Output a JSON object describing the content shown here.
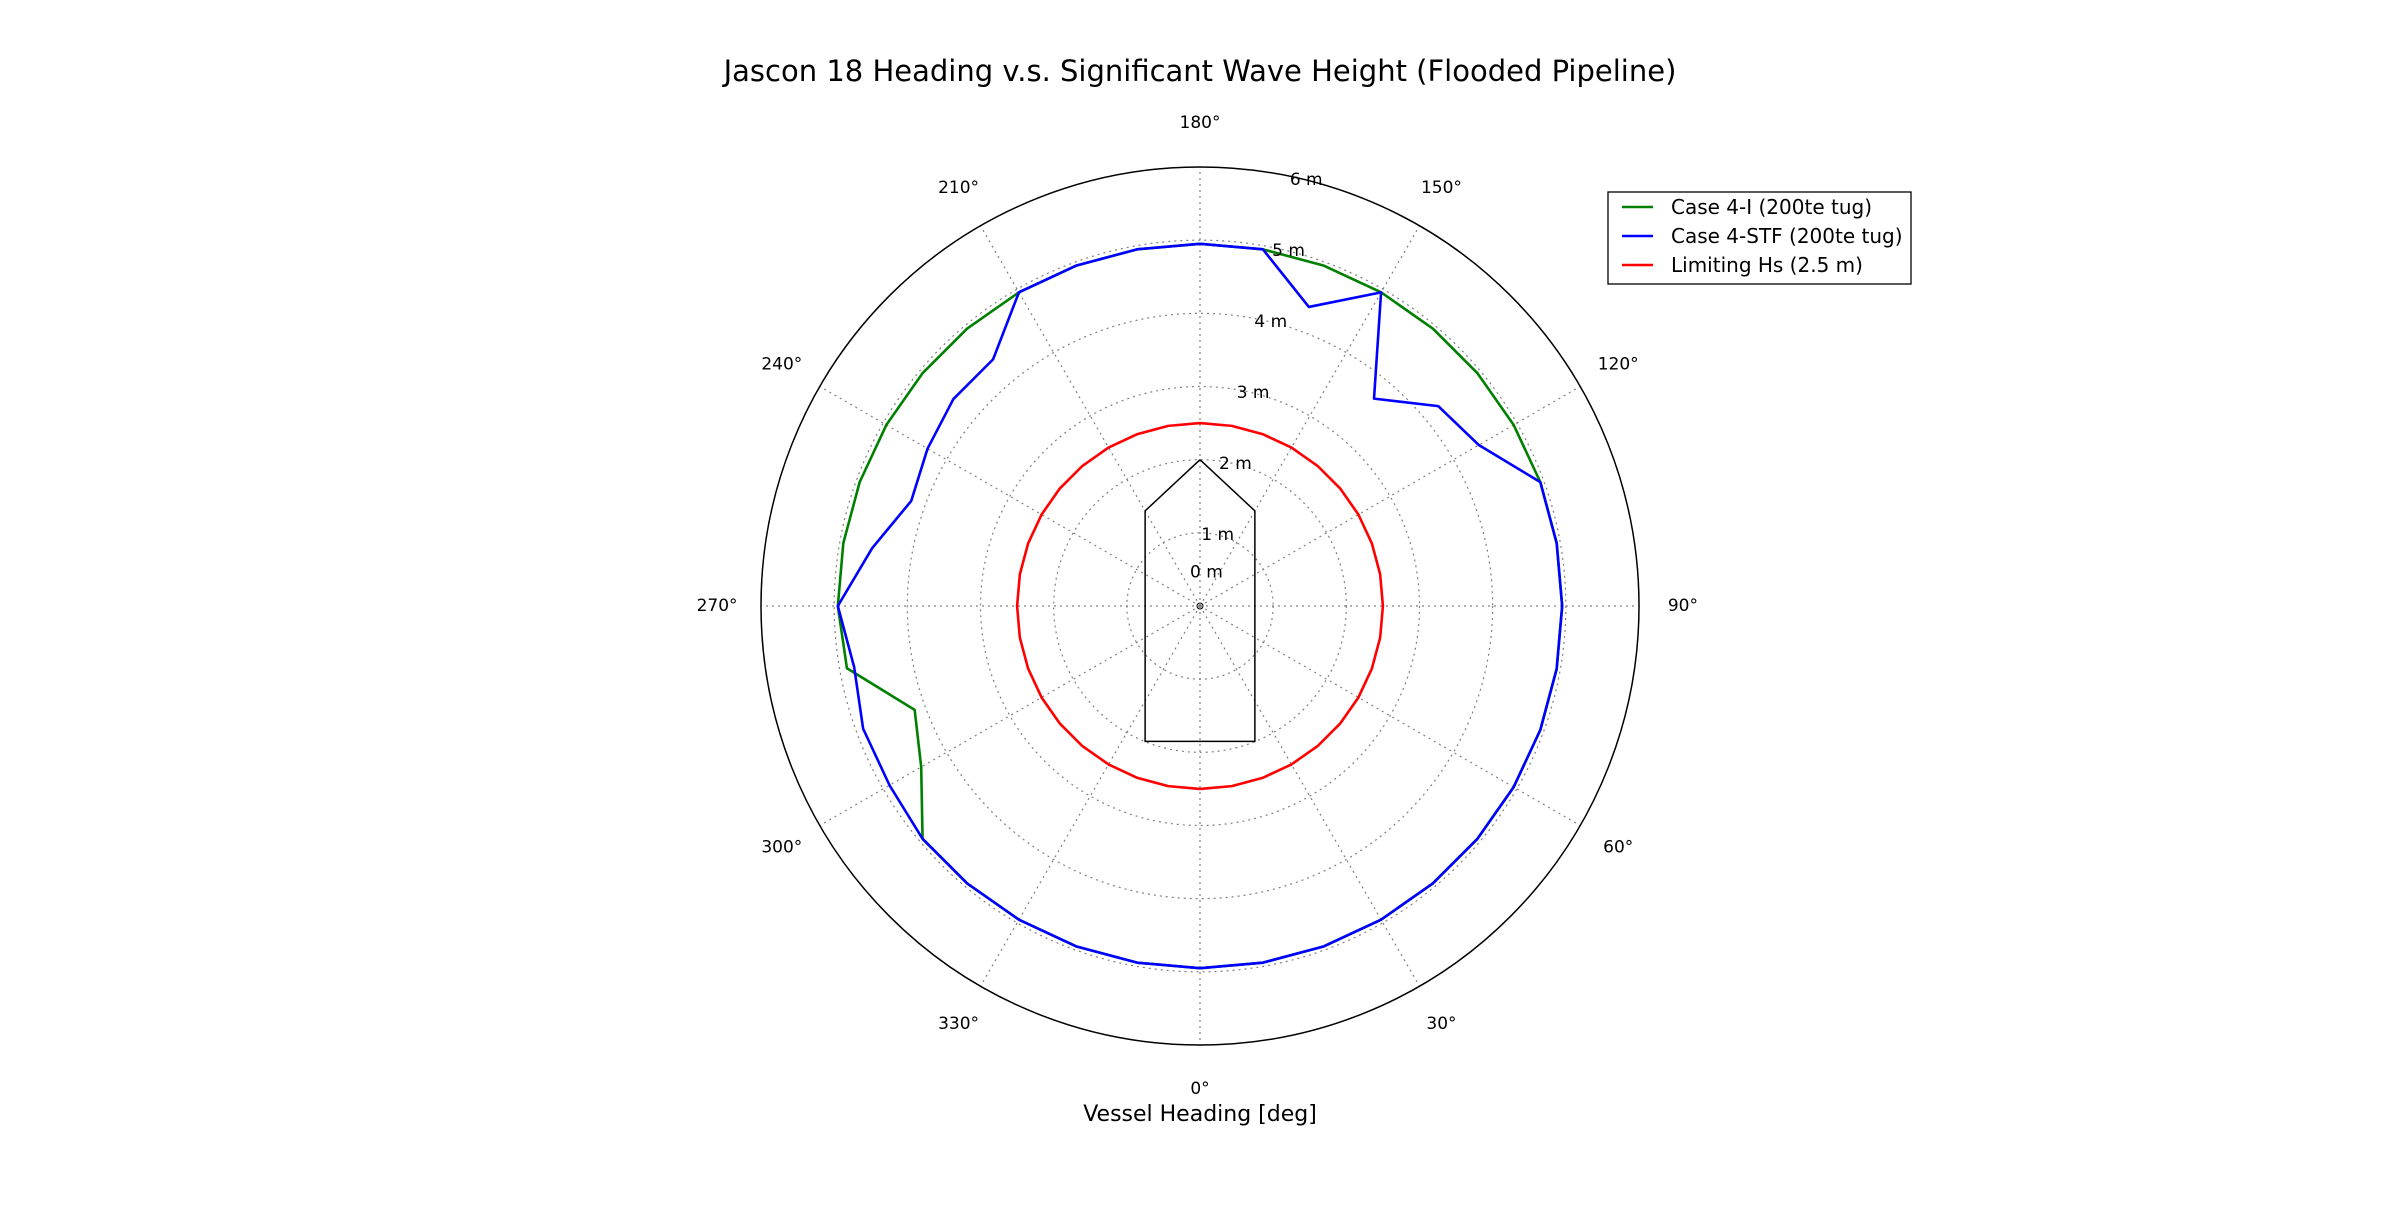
{
  "chart_data": {
    "type": "line",
    "projection": "polar",
    "theta_zero": "bottom",
    "theta_direction": "counter-clockwise",
    "title": "Jascon 18 Heading v.s. Significant Wave Height (Flooded Pipeline)",
    "xlabel": "Vessel Heading [deg]",
    "rlim": [
      0,
      6
    ],
    "r_ticks": [
      0,
      1,
      2,
      3,
      4,
      5,
      6
    ],
    "r_tick_labels": [
      "0 m",
      "1 m",
      "2 m",
      "3 m",
      "4 m",
      "5 m",
      "6 m"
    ],
    "theta_ticks": [
      0,
      30,
      60,
      90,
      120,
      150,
      180,
      210,
      240,
      270,
      300,
      330
    ],
    "theta_tick_labels": [
      "0°",
      "30°",
      "60°",
      "90°",
      "120°",
      "150°",
      "180°",
      "210°",
      "240°",
      "270°",
      "300°",
      "330°"
    ],
    "grid": true,
    "legend_position": "top-right",
    "theta_deg": [
      0,
      10,
      20,
      30,
      40,
      50,
      60,
      70,
      80,
      90,
      100,
      110,
      120,
      130,
      140,
      150,
      160,
      170,
      180,
      190,
      200,
      210,
      220,
      230,
      240,
      250,
      260,
      270,
      280,
      290,
      300,
      310,
      320,
      330,
      340,
      350,
      360
    ],
    "series": [
      {
        "name": "Case 4-I (200te tug)",
        "color": "#008000",
        "values": [
          4.95,
          4.95,
          4.95,
          4.95,
          4.95,
          4.95,
          4.95,
          4.95,
          4.95,
          4.95,
          4.95,
          4.95,
          4.95,
          4.95,
          4.95,
          4.95,
          4.95,
          4.95,
          4.95,
          4.95,
          4.95,
          4.95,
          4.95,
          4.95,
          4.95,
          4.95,
          4.95,
          4.95,
          4.9,
          4.15,
          4.4,
          4.95,
          4.95,
          4.95,
          4.95,
          4.95,
          4.95
        ]
      },
      {
        "name": "Case 4-STF (200te tug)",
        "color": "#0000ff",
        "values": [
          4.95,
          4.95,
          4.95,
          4.95,
          4.95,
          4.95,
          4.95,
          4.95,
          4.95,
          4.95,
          4.95,
          4.95,
          4.4,
          4.25,
          3.7,
          4.95,
          4.35,
          4.95,
          4.95,
          4.95,
          4.95,
          4.95,
          4.4,
          4.4,
          4.3,
          4.2,
          4.55,
          4.95,
          4.8,
          4.9,
          4.9,
          4.95,
          4.95,
          4.95,
          4.95,
          4.95,
          4.95
        ]
      },
      {
        "name": "Limiting Hs (2.5 m)",
        "color": "#ff0000",
        "values": [
          2.5,
          2.5,
          2.5,
          2.5,
          2.5,
          2.5,
          2.5,
          2.5,
          2.5,
          2.5,
          2.5,
          2.5,
          2.5,
          2.5,
          2.5,
          2.5,
          2.5,
          2.5,
          2.5,
          2.5,
          2.5,
          2.5,
          2.5,
          2.5,
          2.5,
          2.5,
          2.5,
          2.5,
          2.5,
          2.5,
          2.5,
          2.5,
          2.5,
          2.5,
          2.5,
          2.5,
          2.5
        ]
      }
    ],
    "vessel_outline": {
      "color": "#000000",
      "points_xy_m": [
        [
          0,
          2.0
        ],
        [
          0.75,
          1.3
        ],
        [
          0.75,
          -1.85
        ],
        [
          -0.75,
          -1.85
        ],
        [
          -0.75,
          1.3
        ],
        [
          0,
          2.0
        ]
      ]
    }
  }
}
